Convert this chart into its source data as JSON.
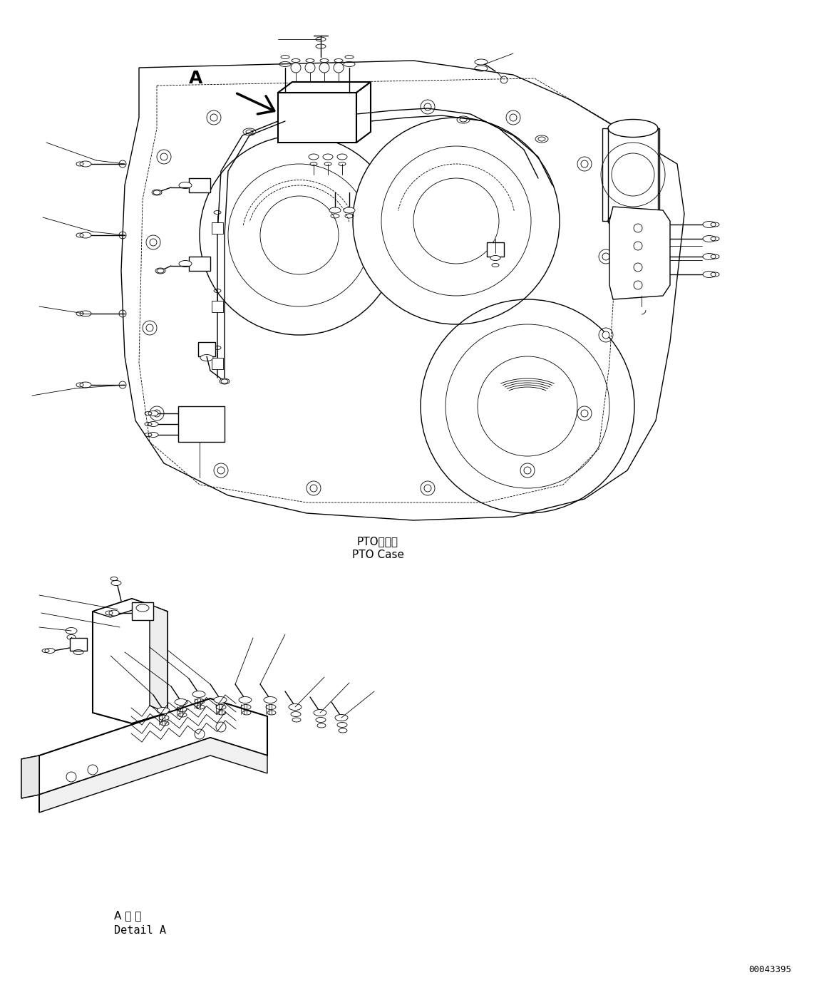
{
  "bg_color": "#ffffff",
  "line_color": "#000000",
  "title_pto_case_jp": "PTOケース",
  "title_pto_case_en": "PTO Case",
  "title_detail_jp": "A 詳 細",
  "title_detail_en": "Detail A",
  "label_a": "A",
  "doc_number": "00043395",
  "fig_width": 11.63,
  "fig_height": 13.82,
  "lw_main": 1.0,
  "lw_thin": 0.6,
  "lw_thick": 1.5
}
